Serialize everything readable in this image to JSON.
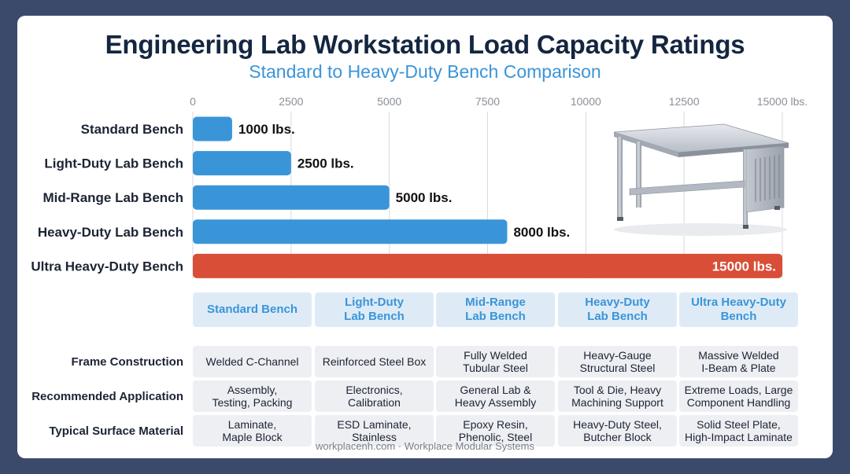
{
  "title": "Engineering Lab Workstation Load Capacity Ratings",
  "subtitle": "Standard to Heavy-Duty Bench Comparison",
  "footer": "workplacenh.com · Workplace Modular Systems",
  "colors": {
    "bar": "#3a95d8",
    "highlight": "#d84e36",
    "grid": "#d7dae0"
  },
  "chart_data": {
    "type": "bar",
    "orientation": "horizontal",
    "categories": [
      "Standard Bench",
      "Light-Duty Lab Bench",
      "Mid-Range Lab Bench",
      "Heavy-Duty Lab Bench",
      "Ultra Heavy-Duty Bench"
    ],
    "values": [
      1000,
      2500,
      5000,
      8000,
      15000
    ],
    "data_labels": [
      "1000 lbs.",
      "2500 lbs.",
      "5000 lbs.",
      "8000 lbs.",
      "15000 lbs."
    ],
    "highlight_index": 4,
    "xlim": [
      0,
      15000
    ],
    "xticks": [
      0,
      2500,
      5000,
      7500,
      10000,
      12500,
      15000
    ],
    "xtick_labels": [
      "0",
      "2500",
      "5000",
      "7500",
      "10000",
      "12500",
      "15000 lbs."
    ],
    "grid": true,
    "axis_position": "top"
  },
  "image": {
    "icon": "steel-workbench-icon"
  },
  "table": {
    "headers": [
      [
        "Standard Bench"
      ],
      [
        "Light-Duty",
        "Lab Bench"
      ],
      [
        "Mid-Range",
        "Lab Bench"
      ],
      [
        "Heavy-Duty",
        "Lab Bench"
      ],
      [
        "Ultra Heavy-Duty",
        "Bench"
      ]
    ],
    "rows": [
      {
        "label": "Frame Construction",
        "cells": [
          [
            "Welded C-Channel"
          ],
          [
            "Reinforced Steel Box"
          ],
          [
            "Fully Welded",
            "Tubular Steel"
          ],
          [
            "Heavy-Gauge",
            "Structural Steel"
          ],
          [
            "Massive Welded",
            "I-Beam & Plate"
          ]
        ]
      },
      {
        "label": "Recommended Application",
        "cells": [
          [
            "Assembly,",
            "Testing, Packing"
          ],
          [
            "Electronics,",
            "Calibration"
          ],
          [
            "General Lab &",
            "Heavy Assembly"
          ],
          [
            "Tool & Die, Heavy",
            "Machining Support"
          ],
          [
            "Extreme Loads, Large",
            "Component Handling"
          ]
        ]
      },
      {
        "label": "Typical Surface Material",
        "cells": [
          [
            "Laminate,",
            "Maple Block"
          ],
          [
            "ESD Laminate,",
            "Stainless"
          ],
          [
            "Epoxy Resin,",
            "Phenolic, Steel"
          ],
          [
            "Heavy-Duty Steel,",
            "Butcher Block"
          ],
          [
            "Solid Steel Plate,",
            "High-Impact Laminate"
          ]
        ]
      }
    ]
  }
}
